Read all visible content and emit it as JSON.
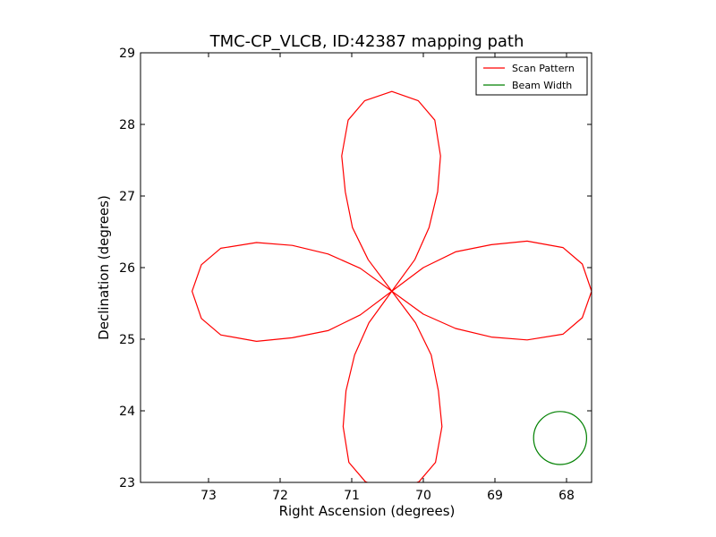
{
  "chart_data": {
    "type": "line",
    "title": "TMC-CP_VLCB, ID:42387 mapping path",
    "xlabel": "Right Ascension (degrees)",
    "ylabel": "Declination (degrees)",
    "xlim": [
      73.95,
      67.65
    ],
    "ylim": [
      23,
      29
    ],
    "x_ticks": [
      73,
      72,
      71,
      70,
      69,
      68
    ],
    "y_ticks": [
      23,
      24,
      25,
      26,
      27,
      28,
      29
    ],
    "x_inverted": true,
    "grid": false,
    "legend": {
      "position": "top-right",
      "entries": [
        "Scan Pattern",
        "Beam Width"
      ]
    },
    "series": [
      {
        "name": "Scan Pattern",
        "color": "#ff0000",
        "center": [
          70.44,
          25.67
        ],
        "petal_extent_deg": 2.53,
        "petal_half_width_deg": 0.68,
        "x": [
          70.44,
          70.0,
          69.55,
          69.05,
          68.55,
          68.05,
          67.78,
          67.65,
          67.78,
          68.05,
          68.55,
          69.05,
          69.55,
          70.0,
          70.44
        ],
        "y": [
          25.67,
          26.0,
          26.22,
          26.32,
          26.37,
          26.28,
          26.05,
          25.67,
          25.3,
          25.07,
          24.99,
          25.03,
          25.15,
          25.35,
          25.67
        ]
      },
      {
        "name": "Beam Width",
        "color": "#008000",
        "center": [
          68.09,
          23.62
        ],
        "radius_deg": 0.37
      }
    ]
  }
}
